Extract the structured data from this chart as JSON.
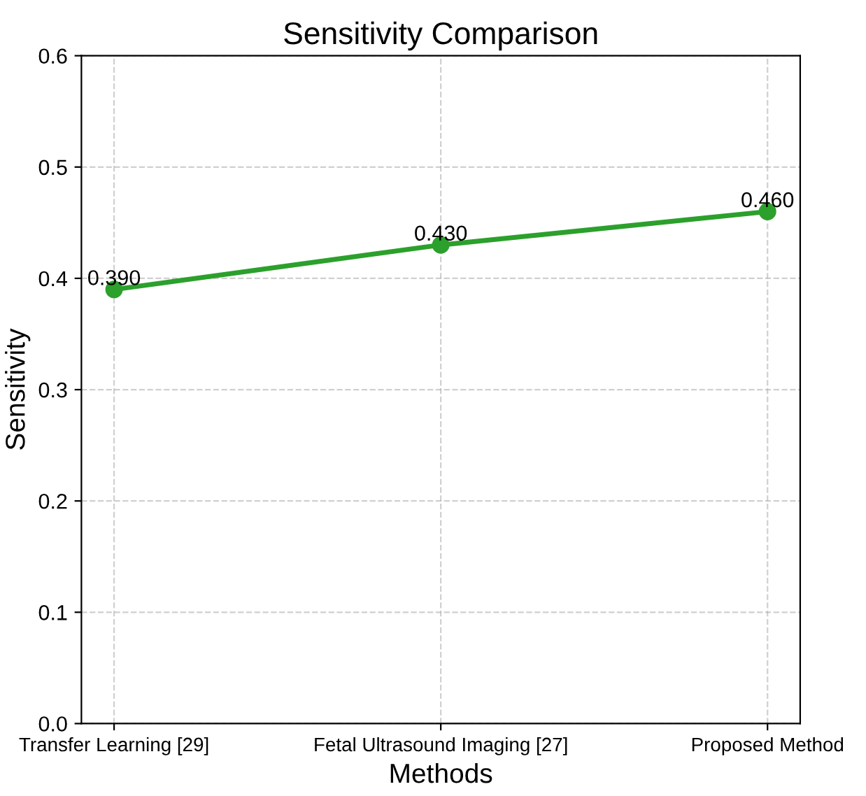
{
  "chart_data": {
    "type": "line",
    "title": "Sensitivity Comparison",
    "xlabel": "Methods",
    "ylabel": "Sensitivity",
    "categories": [
      "Transfer Learning [29]",
      "Fetal Ultrasound Imaging [27]",
      "Proposed Method"
    ],
    "series": [
      {
        "color": "#2ca02c",
        "values": [
          0.39,
          0.43,
          0.46
        ],
        "value_labels": [
          "0.390",
          "0.430",
          "0.460"
        ]
      }
    ],
    "ylim": [
      0,
      0.6
    ],
    "yticks": [
      {
        "value": 0,
        "label": "0.0"
      },
      0.1,
      0.2,
      0.3,
      0.4,
      0.5,
      0.6
    ],
    "grid": true,
    "marker": "circle",
    "line_style": "solid"
  }
}
